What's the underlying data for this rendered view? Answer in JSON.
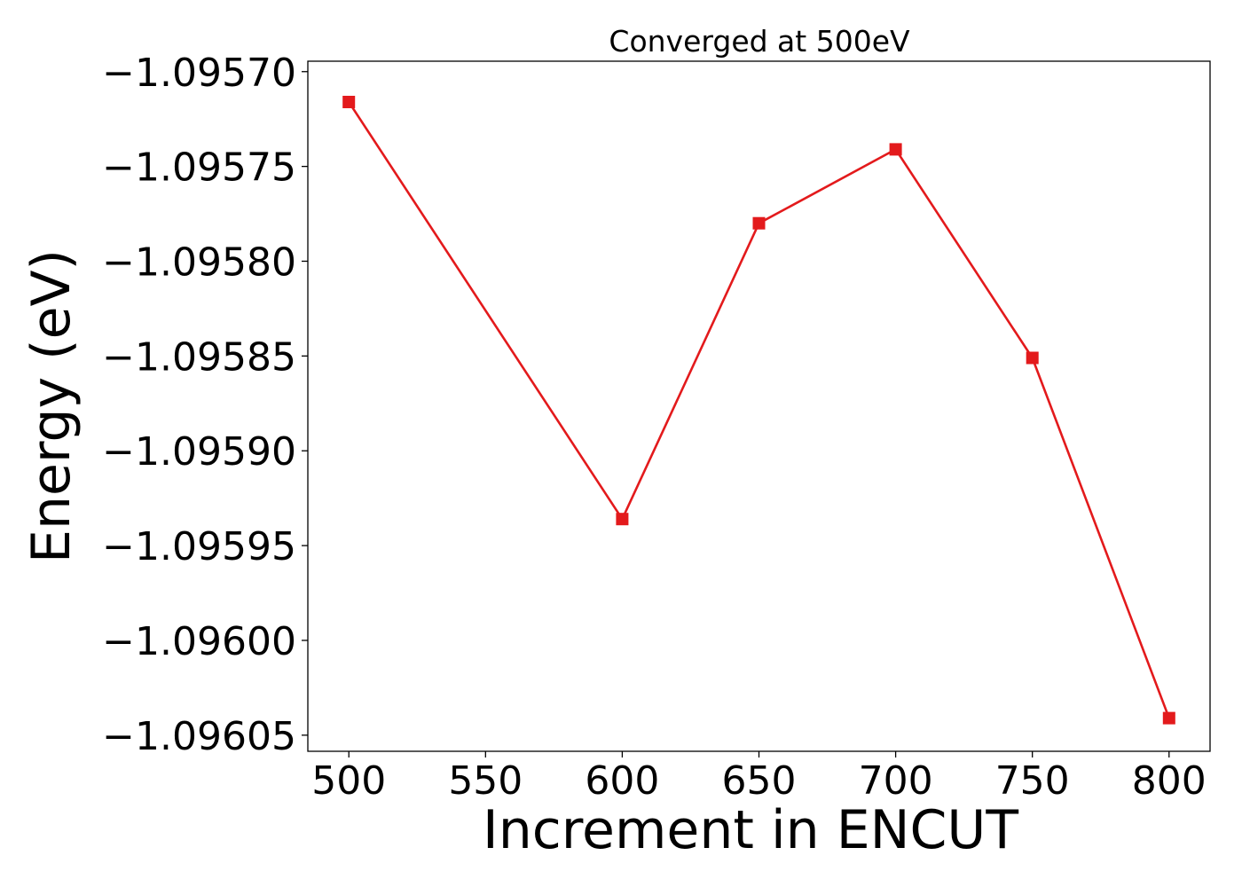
{
  "chart_data": {
    "type": "line",
    "title": "Converged at 500eV",
    "xlabel": "Increment in ENCUT",
    "ylabel": "Energy (eV)",
    "x": [
      500,
      600,
      650,
      700,
      750,
      800
    ],
    "series": [
      {
        "values": [
          -1.095716,
          -1.095936,
          -1.09578,
          -1.095741,
          -1.095851,
          -1.096041
        ],
        "color": "#e31a1c",
        "marker": "square"
      }
    ],
    "xticks": [
      500,
      550,
      600,
      650,
      700,
      750,
      800
    ],
    "xtick_labels": [
      "500",
      "550",
      "600",
      "650",
      "700",
      "750",
      "800"
    ],
    "yticks": [
      -1.0957,
      -1.09575,
      -1.0958,
      -1.09585,
      -1.0959,
      -1.09595,
      -1.096,
      -1.09605
    ],
    "ytick_labels": [
      "−1.09570",
      "−1.09575",
      "−1.09580",
      "−1.09585",
      "−1.09590",
      "−1.09595",
      "−1.09600",
      "−1.09605"
    ],
    "xlim": [
      485,
      815
    ],
    "ylim": [
      -1.0960585,
      -1.0956945
    ],
    "grid": false,
    "legend": "none"
  }
}
